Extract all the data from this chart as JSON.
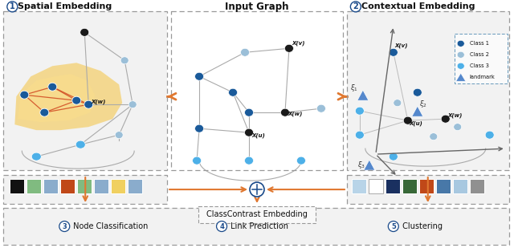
{
  "bg_color": "#ffffff",
  "panel_bg": "#f2f2f2",
  "spatial_title": "①  Spatial Embedding",
  "input_title": "Input Graph",
  "contextual_title": "②  Contextual Embedding",
  "dark_blue": "#1a5a9a",
  "light_blue": "#4db0e8",
  "pale_blue": "#9bbfd8",
  "black_node": "#1a1a1a",
  "orange": "#e07830",
  "left_swatches": [
    "#111111",
    "#80bb80",
    "#8aaccc",
    "#c04818",
    "#80bb80",
    "#8aaccc",
    "#f0d060",
    "#8aaccc"
  ],
  "right_swatches": [
    "#b8d4e8",
    "#ffffff",
    "#1a3060",
    "#386838",
    "#c04818",
    "#4878a8",
    "#a8c8e0",
    "#909090"
  ],
  "classcontrast_label": "ClassContrast Embedding"
}
